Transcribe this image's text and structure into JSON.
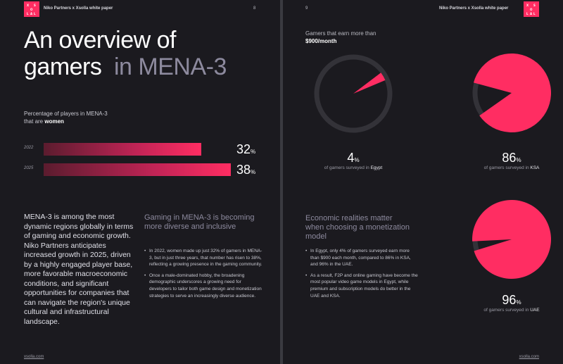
{
  "left_page": {
    "header": "Niko Partners x Xsolla white paper",
    "page_number": "8",
    "title_main": "An overview of gamers",
    "title_accent": "in MENA-3",
    "chart_label_pre": "Percentage of players in MENA-3 that are",
    "chart_label_bold": "women",
    "body_text": "MENA-3 is among the most dynamic regions globally in terms of gaming and economic growth. Niko Partners anticipates increased growth in 2025, driven by a highly engaged player base, more favorable macroeconomic conditions, and significant opportunities for companies that can navigate the region's unique cultural and infrastructural landscape.",
    "subheading": "Gaming in MENA-3 is becoming more diverse and inclusive",
    "bullets": [
      "In 2022, women made up just 32% of gamers in MENA-3, but in just three years, that number has risen to 38%, reflecting a growing presence in the gaming community.",
      "Once a male-dominated hobby, the broadening demographic underscores a growing need for developers to tailor both game design and monetization strategies to serve an increasingly diverse audience."
    ],
    "footer": "xsolla.com"
  },
  "right_page": {
    "header": "Niko Partners x Xsolla white paper",
    "page_number": "9",
    "chart_label_pre": "Gamers that earn more than",
    "chart_label_bold": "$900/month",
    "caption": "of gamers surveyed in",
    "subheading": "Economic realities matter when choosing a monetization model",
    "bullets": [
      "In Egypt, only 4% of gamers surveyed earn more than $900 each month, compared to 86% in KSA, and 96% in the UAE.",
      "As a result, F2P and online gaming have become the most popular video game models in Egypt, while premium and subscription models do better in the UAE and KSA."
    ],
    "footer": "xsolla.com"
  },
  "logo_letters": [
    "X",
    "S",
    "O",
    "L",
    "L",
    "A"
  ],
  "colors": {
    "accent": "#ff2d62",
    "page_bg": "#1b1a1f",
    "muted": "#8d8a9e"
  },
  "chart_data": [
    {
      "type": "bar",
      "title": "Percentage of players in MENA-3 that are women",
      "categories": [
        "2022",
        "2025"
      ],
      "values": [
        32,
        38
      ],
      "unit": "%",
      "ylim": [
        0,
        38
      ]
    },
    {
      "type": "pie",
      "title": "Gamers that earn more than $900/month",
      "categories": [
        "Egypt",
        "KSA",
        "UAE"
      ],
      "values": [
        4,
        86,
        96
      ],
      "unit": "%"
    }
  ]
}
